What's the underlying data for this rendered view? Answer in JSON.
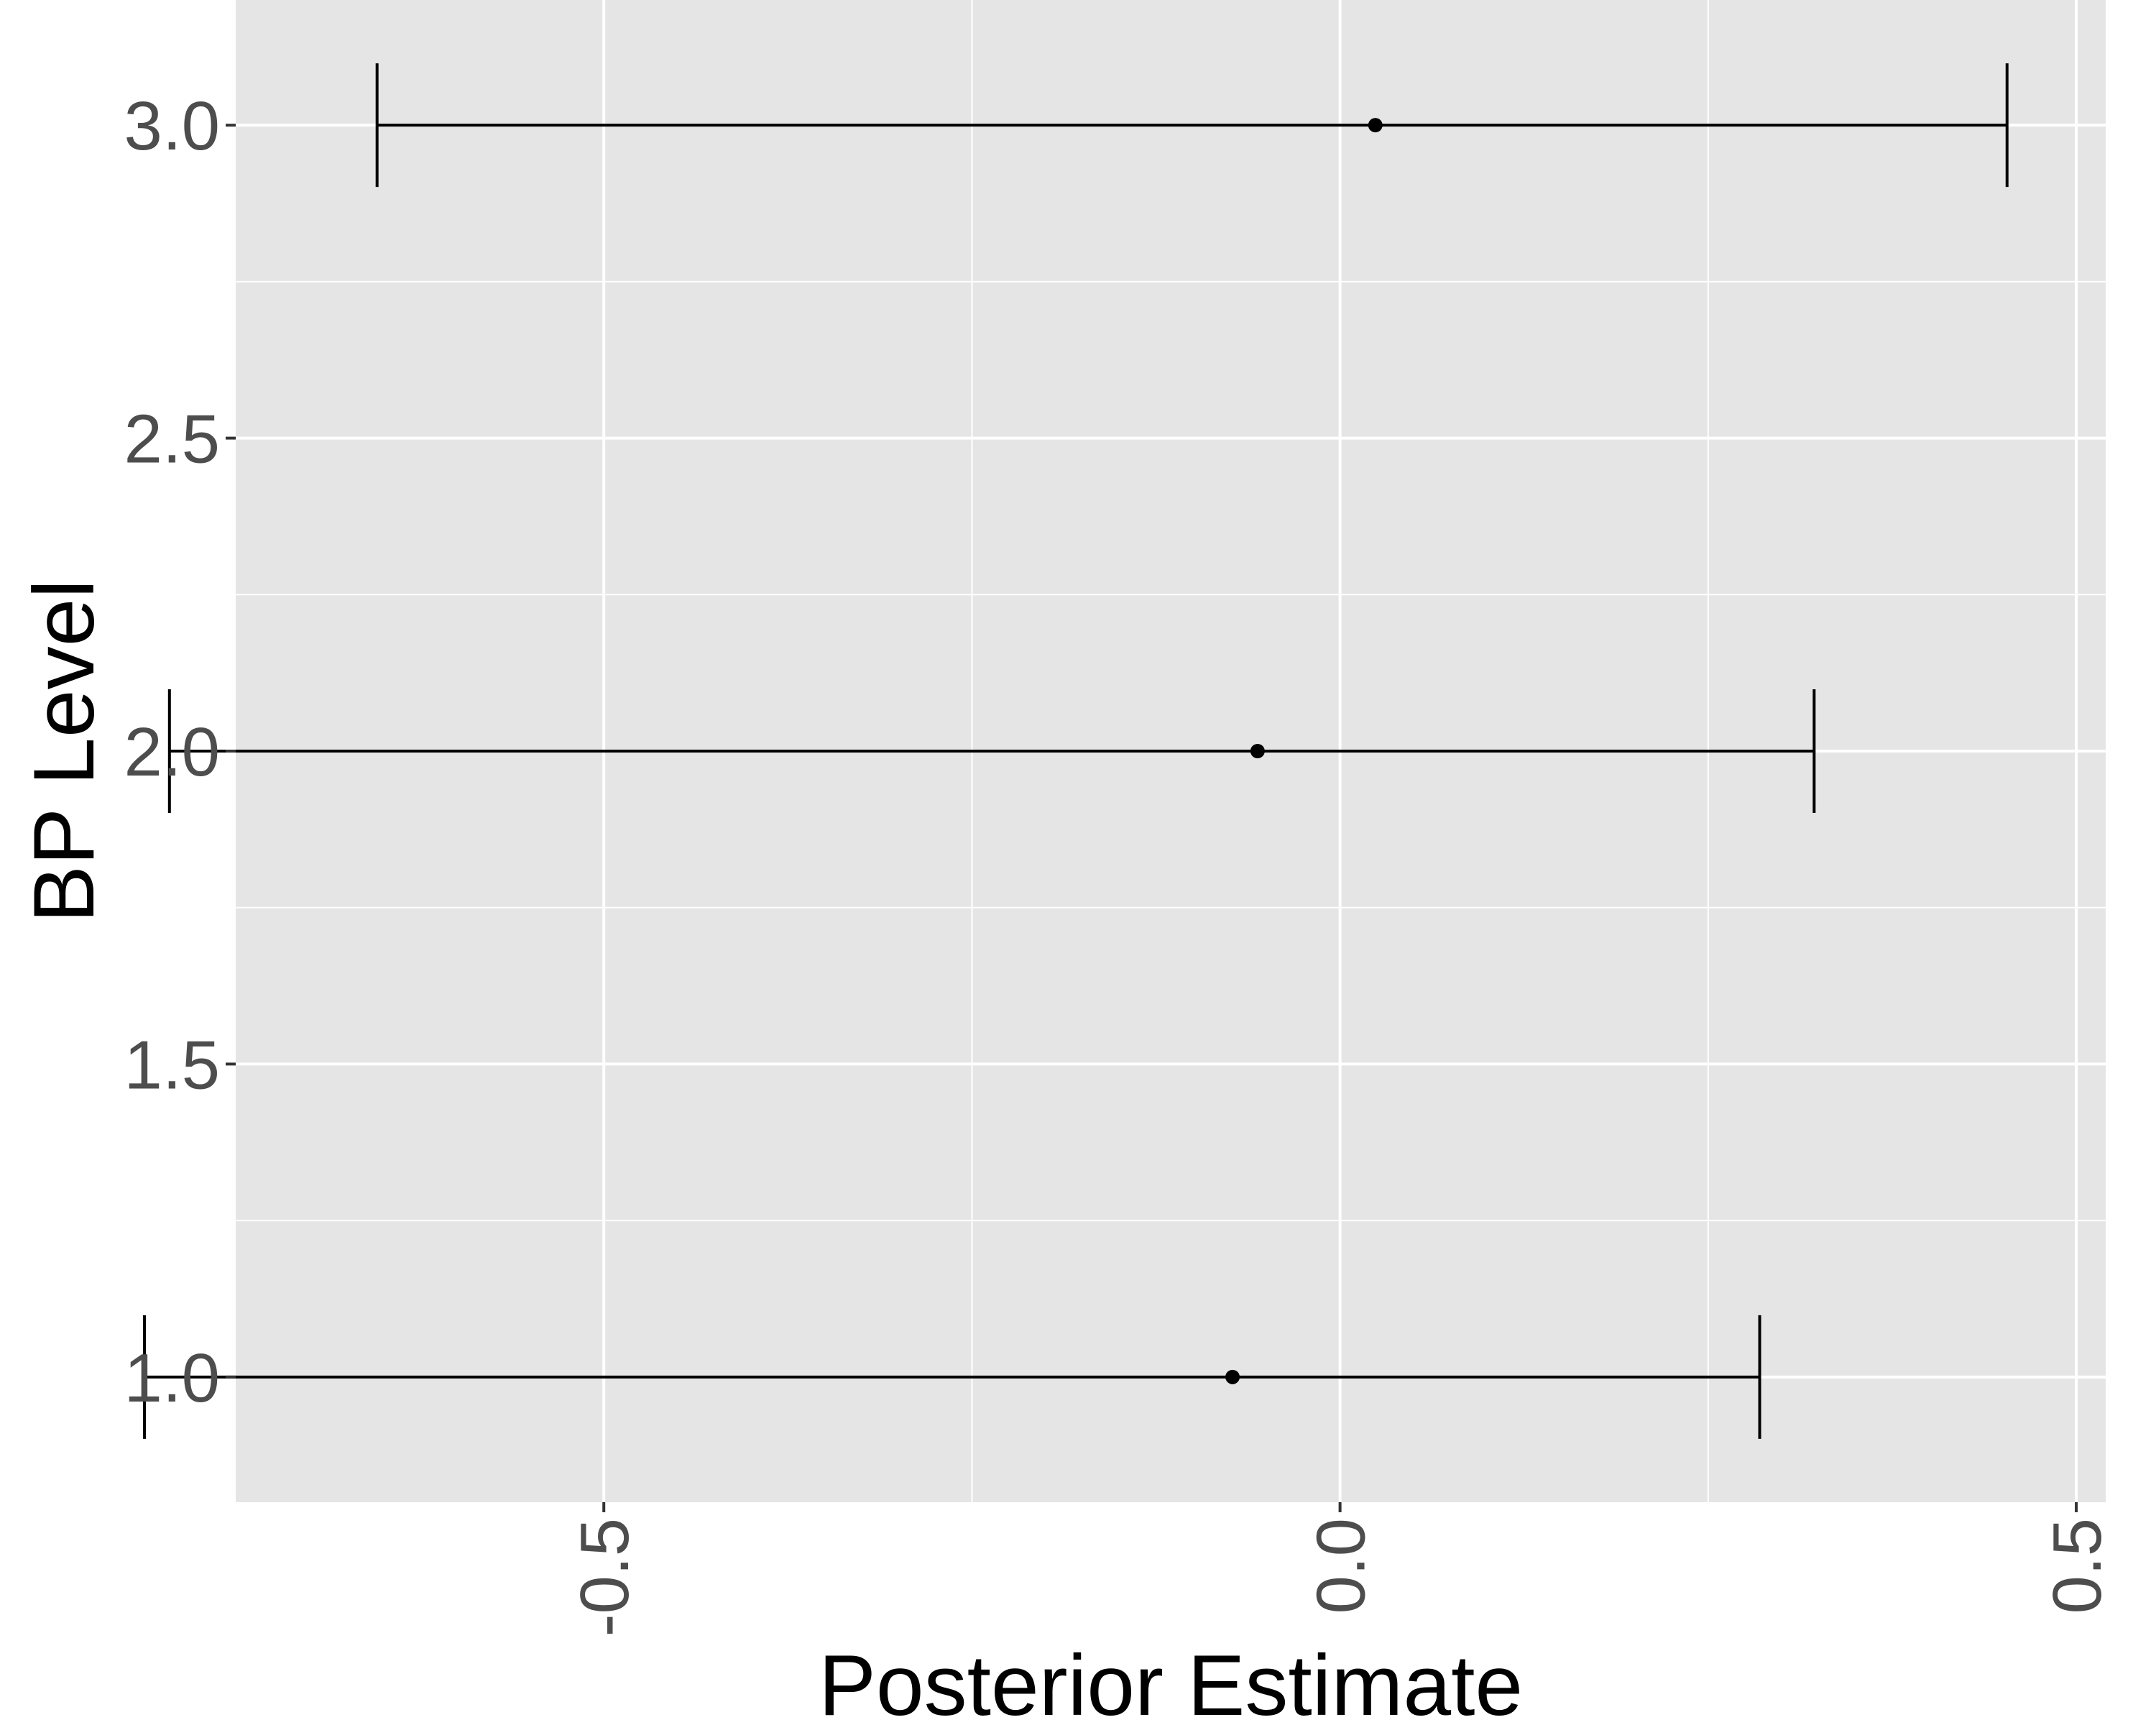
{
  "chart_data": {
    "type": "errorbar",
    "title": "",
    "xlabel": "Posterior Estimate",
    "ylabel": "BP Level",
    "xlim": [
      -0.75,
      0.52
    ],
    "ylim": [
      0.8,
      3.2
    ],
    "x_ticks": [
      -0.5,
      0.0,
      0.5
    ],
    "x_tick_labels": [
      "-0.5",
      "0.0",
      "0.5"
    ],
    "y_ticks": [
      1.0,
      1.5,
      2.0,
      2.5,
      3.0
    ],
    "y_tick_labels": [
      "1.0",
      "1.5",
      "2.0",
      "2.5",
      "3.0"
    ],
    "grid": true,
    "background": "#e5e5e5",
    "grid_color": "#ffffff",
    "mark_color": "#000000",
    "points": [
      {
        "y": 1.0,
        "estimate": -0.073,
        "lower": -0.812,
        "upper": 0.285
      },
      {
        "y": 2.0,
        "estimate": -0.056,
        "lower": -0.795,
        "upper": 0.322
      },
      {
        "y": 3.0,
        "estimate": 0.024,
        "lower": -0.654,
        "upper": 0.453
      }
    ]
  }
}
